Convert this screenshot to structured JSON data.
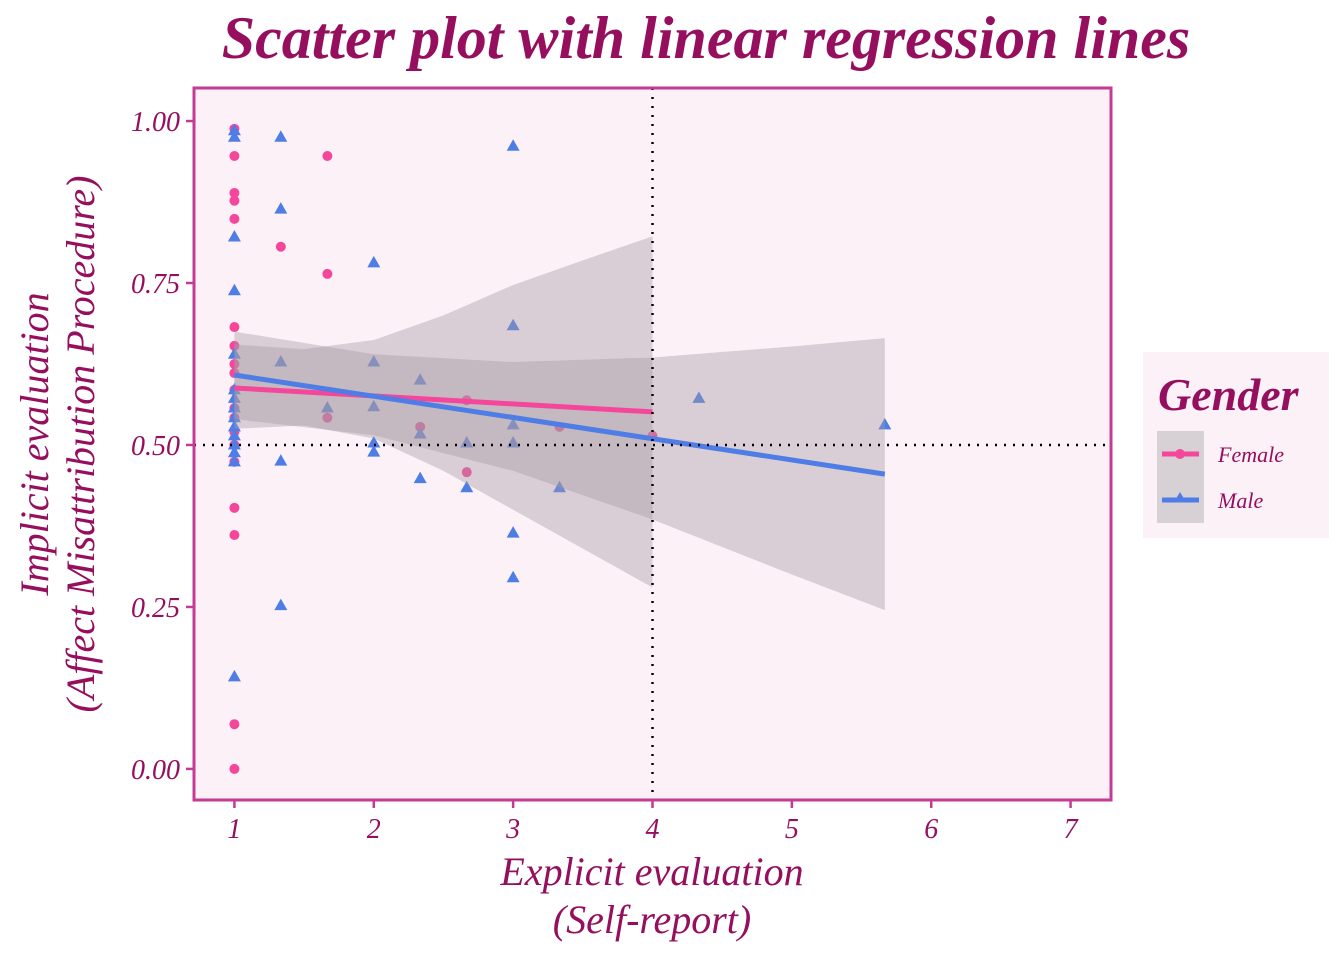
{
  "chart_data": {
    "type": "scatter",
    "title": "Scatter plot with linear regression lines",
    "xlabel": [
      "Explicit evaluation",
      "(Self-report)"
    ],
    "ylabel": [
      "Implicit evaluation",
      "(Affect Misattribution Procedure)"
    ],
    "xlim": [
      0.71,
      7.29
    ],
    "ylim": [
      -0.048,
      1.051
    ],
    "xticks": [
      1,
      2,
      3,
      4,
      5,
      6,
      7
    ],
    "xtick_labels": [
      "1",
      "2",
      "3",
      "4",
      "5",
      "6",
      "7"
    ],
    "yticks": [
      0,
      0.25,
      0.5,
      0.75,
      1
    ],
    "ytick_labels": [
      "0.00",
      "0.25",
      "0.50",
      "0.75",
      "1.00"
    ],
    "grid": false,
    "reference_lines": {
      "x": 4,
      "y": 0.5,
      "style": "dotted"
    },
    "legend": {
      "title": "Gender",
      "placement": "right",
      "entries": [
        "Female",
        "Male"
      ]
    },
    "colors": {
      "Female": "#f4479b",
      "Male": "#4f7de6",
      "title": "#950f5e",
      "panel": "#fbf1f7",
      "border": "#c43b95",
      "ribbon": "#a89aa3"
    },
    "series": [
      {
        "name": "Female",
        "marker": "circle",
        "points": [
          [
            1,
            0.988
          ],
          [
            1,
            0.946
          ],
          [
            1,
            0.889
          ],
          [
            1,
            0.877
          ],
          [
            1,
            0.849
          ],
          [
            1,
            0.682
          ],
          [
            1,
            0.653
          ],
          [
            1,
            0.625
          ],
          [
            1,
            0.611
          ],
          [
            1,
            0.585
          ],
          [
            1,
            0.557
          ],
          [
            1,
            0.542
          ],
          [
            1,
            0.52
          ],
          [
            1,
            0.5
          ],
          [
            1,
            0.474
          ],
          [
            1,
            0.403
          ],
          [
            1,
            0.361
          ],
          [
            1,
            0.069
          ],
          [
            1,
            0.0
          ],
          [
            1.333,
            0.806
          ],
          [
            1.667,
            0.946
          ],
          [
            1.667,
            0.764
          ],
          [
            1.667,
            0.542
          ],
          [
            2.333,
            0.528
          ],
          [
            2.667,
            0.569
          ],
          [
            2.667,
            0.458
          ],
          [
            3.333,
            0.528
          ],
          [
            4,
            0.514
          ]
        ],
        "fit": {
          "x": [
            1,
            4
          ],
          "y": [
            0.588,
            0.551
          ]
        },
        "ci": {
          "x": [
            1,
            1.5,
            2,
            2.5,
            3,
            3.5,
            4
          ],
          "upper": [
            0.655,
            0.648,
            0.662,
            0.7,
            0.747,
            0.785,
            0.822
          ],
          "lower": [
            0.525,
            0.53,
            0.51,
            0.46,
            0.4,
            0.34,
            0.28
          ]
        }
      },
      {
        "name": "Male",
        "marker": "triangle",
        "points": [
          [
            1,
            0.985
          ],
          [
            1,
            0.975
          ],
          [
            1,
            0.821
          ],
          [
            1,
            0.738
          ],
          [
            1,
            0.64
          ],
          [
            1,
            0.585
          ],
          [
            1,
            0.572
          ],
          [
            1,
            0.557
          ],
          [
            1,
            0.542
          ],
          [
            1,
            0.528
          ],
          [
            1,
            0.514
          ],
          [
            1,
            0.5
          ],
          [
            1,
            0.488
          ],
          [
            1,
            0.474
          ],
          [
            1,
            0.142
          ],
          [
            1.333,
            0.975
          ],
          [
            1.333,
            0.864
          ],
          [
            1.333,
            0.628
          ],
          [
            1.333,
            0.475
          ],
          [
            1.333,
            0.252
          ],
          [
            1.667,
            0.557
          ],
          [
            2,
            0.781
          ],
          [
            2,
            0.628
          ],
          [
            2,
            0.559
          ],
          [
            2,
            0.503
          ],
          [
            2,
            0.489
          ],
          [
            2.333,
            0.6
          ],
          [
            2.333,
            0.517
          ],
          [
            2.333,
            0.448
          ],
          [
            2.667,
            0.503
          ],
          [
            2.667,
            0.434
          ],
          [
            3,
            0.961
          ],
          [
            3,
            0.684
          ],
          [
            3,
            0.531
          ],
          [
            3,
            0.503
          ],
          [
            3,
            0.364
          ],
          [
            3,
            0.295
          ],
          [
            3.333,
            0.434
          ],
          [
            4.333,
            0.572
          ],
          [
            5.667,
            0.531
          ]
        ],
        "fit": {
          "x": [
            1,
            5.667
          ],
          "y": [
            0.608,
            0.455
          ]
        },
        "ci": {
          "x": [
            1,
            2,
            3,
            4,
            5,
            5.667
          ],
          "upper": [
            0.675,
            0.64,
            0.628,
            0.635,
            0.652,
            0.665
          ],
          "lower": [
            0.54,
            0.515,
            0.46,
            0.385,
            0.3,
            0.245
          ]
        }
      }
    ]
  }
}
